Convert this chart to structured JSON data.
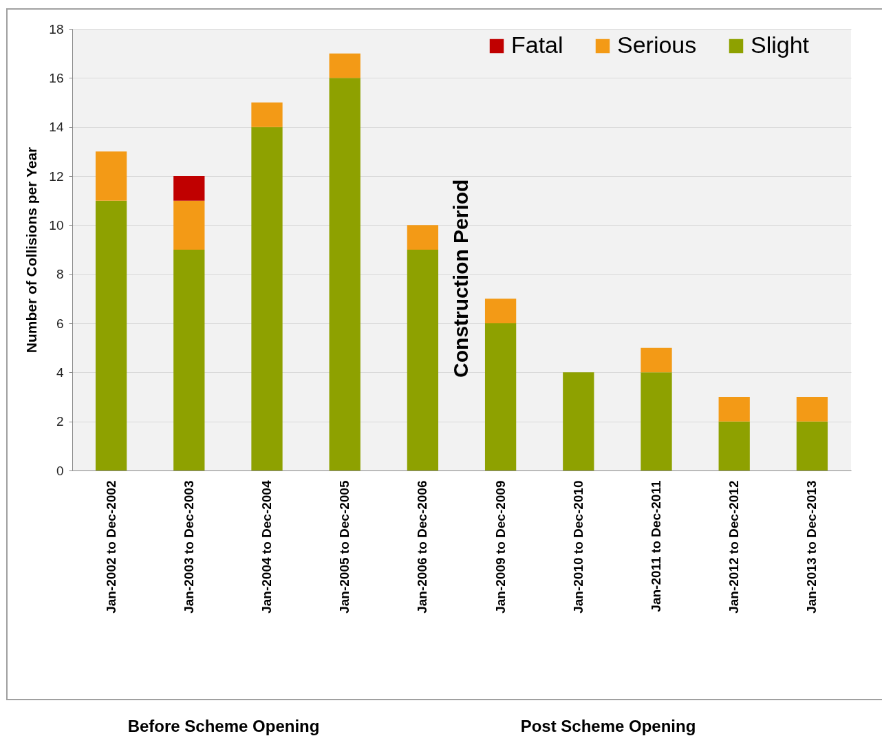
{
  "chart_data": {
    "type": "bar",
    "stacked": true,
    "ylabel": "Number of Collisions per Year",
    "categories": [
      "Jan-2002 to Dec-2002",
      "Jan-2003 to Dec-2003",
      "Jan-2004 to Dec-2004",
      "Jan-2005 to Dec-2005",
      "Jan-2006 to Dec-2006",
      "Jan-2009 to Dec-2009",
      "Jan-2010 to Dec-2010",
      "Jan-2011 to Dec-2011",
      "Jan-2012 to Dec-2012",
      "Jan-2013 to Dec-2013"
    ],
    "series": [
      {
        "name": "Slight",
        "color": "#8ea100",
        "values": [
          11,
          9,
          14,
          16,
          9,
          6,
          4,
          4,
          2,
          2
        ]
      },
      {
        "name": "Serious",
        "color": "#f39a16",
        "values": [
          2,
          2,
          1,
          1,
          1,
          1,
          0,
          1,
          1,
          1
        ]
      },
      {
        "name": "Fatal",
        "color": "#c00000",
        "values": [
          0,
          1,
          0,
          0,
          0,
          0,
          0,
          0,
          0,
          0
        ]
      }
    ],
    "ylim": [
      0,
      18
    ],
    "yticks": [
      0,
      2,
      4,
      6,
      8,
      10,
      12,
      14,
      16,
      18
    ],
    "grid": "y",
    "legend": "top right",
    "annotations": [
      "Construction Period",
      "Before Scheme Opening",
      "Post Scheme Opening"
    ]
  }
}
